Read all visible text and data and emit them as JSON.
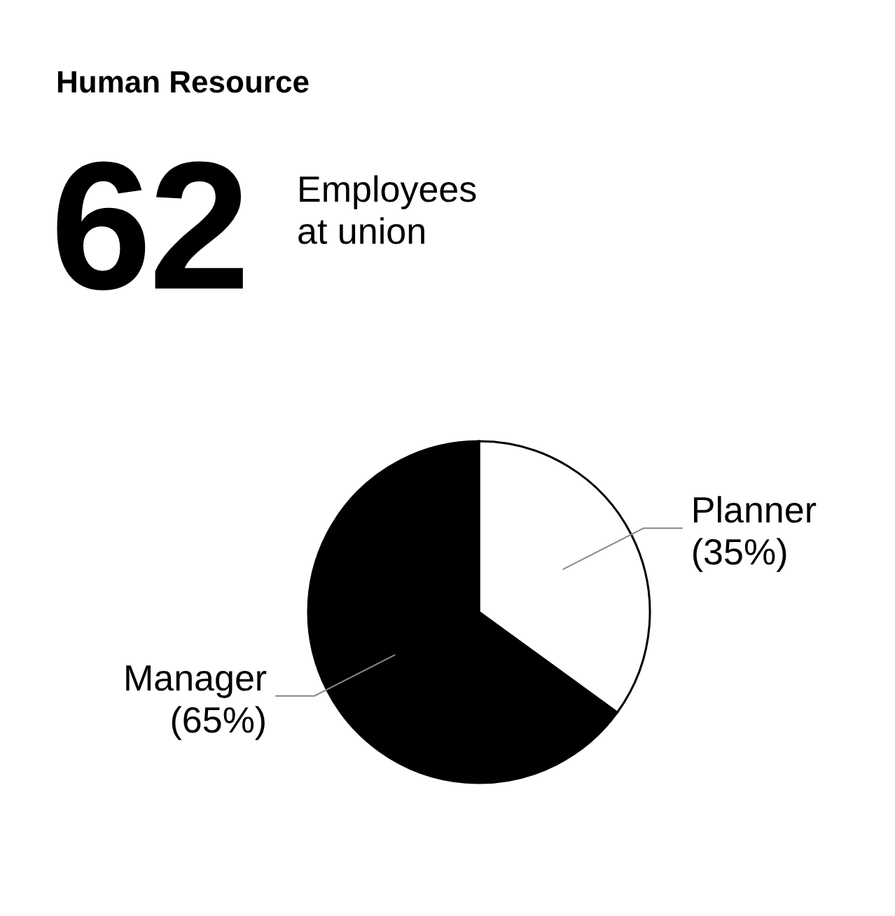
{
  "chart_data": {
    "type": "pie",
    "title": "Human Resource",
    "annotations": [
      "62",
      "Employees at union"
    ],
    "categories": [
      "Planner",
      "Manager"
    ],
    "values": [
      35,
      65
    ],
    "colors": [
      "#ffffff",
      "#000000"
    ],
    "value_labels": [
      "(35%)",
      "(65%)"
    ]
  }
}
